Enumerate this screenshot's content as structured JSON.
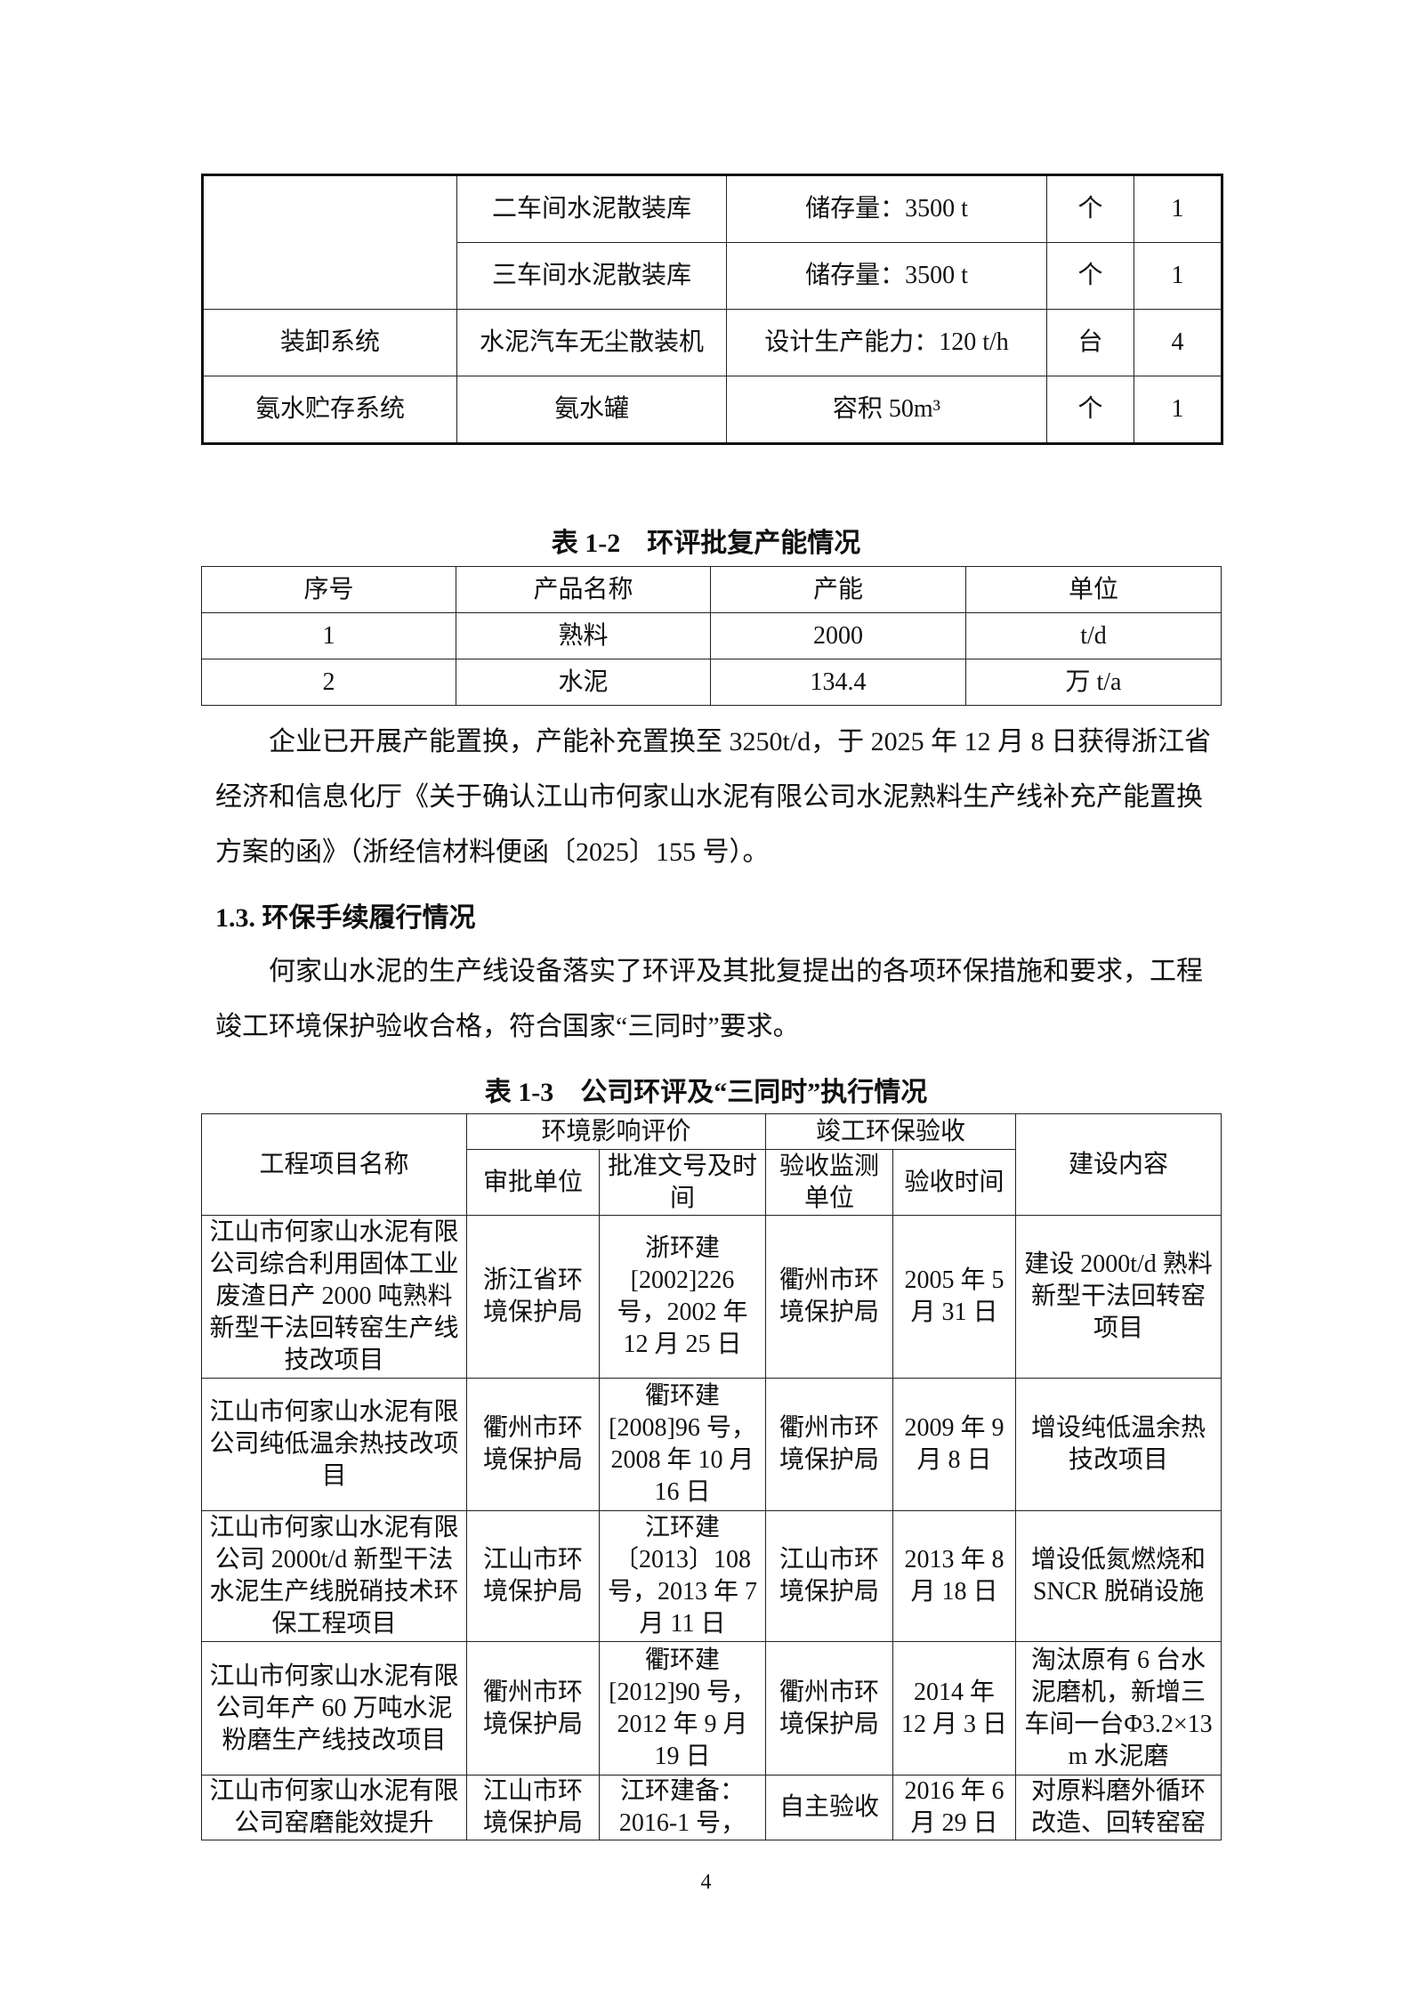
{
  "table_top": {
    "rows": [
      {
        "group": "",
        "name": "二车间水泥散装库",
        "spec": "储存量：3500 t",
        "unit": "个",
        "qty": "1"
      },
      {
        "name": "三车间水泥散装库",
        "spec": "储存量：3500 t",
        "unit": "个",
        "qty": "1"
      },
      {
        "group": "装卸系统",
        "name": "水泥汽车无尘散装机",
        "spec": "设计生产能力：120 t/h",
        "unit": "台",
        "qty": "4"
      },
      {
        "group": "氨水贮存系统",
        "name": "氨水罐",
        "spec": "容积 50m³",
        "unit": "个",
        "qty": "1"
      }
    ]
  },
  "table_1_2": {
    "caption": "表 1-2　环评批复产能情况",
    "headers": [
      "序号",
      "产品名称",
      "产能",
      "单位"
    ],
    "rows": [
      [
        "1",
        "熟料",
        "2000",
        "t/d"
      ],
      [
        "2",
        "水泥",
        "134.4",
        "万 t/a"
      ]
    ]
  },
  "paragraph1": "企业已开展产能置换，产能补充置换至 3250t/d，于 2025 年 12 月 8 日获得浙江省经济和信息化厅《关于确认江山市何家山水泥有限公司水泥熟料生产线补充产能置换方案的函》（浙经信材料便函〔2025〕155 号）。",
  "section_heading": "1.3. 环保手续履行情况",
  "paragraph2": "何家山水泥的生产线设备落实了环评及其批复提出的各项环保措施和要求，工程竣工环境保护验收合格，符合国家“三同时”要求。",
  "table_1_3": {
    "caption": "表 1-3　公司环评及“三同时”执行情况",
    "headers": {
      "project": "工程项目名称",
      "eia": "环境影响评价",
      "acceptance": "竣工环保验收",
      "content": "建设内容",
      "approver": "审批单位",
      "doc": "批准文号及时间",
      "monitor": "验收监测单位",
      "time": "验收时间"
    },
    "rows": [
      [
        "江山市何家山水泥有限公司综合利用固体工业废渣日产 2000 吨熟料新型干法回转窑生产线技改项目",
        "浙江省环境保护局",
        "浙环建[2002]226 号，2002 年 12 月 25 日",
        "衢州市环境保护局",
        "2005 年 5 月 31 日",
        "建设 2000t/d 熟料新型干法回转窑项目"
      ],
      [
        "江山市何家山水泥有限公司纯低温余热技改项目",
        "衢州市环境保护局",
        "衢环建[2008]96 号，2008 年 10 月 16 日",
        "衢州市环境保护局",
        "2009 年 9 月 8 日",
        "增设纯低温余热技改项目"
      ],
      [
        "江山市何家山水泥有限公司 2000t/d 新型干法水泥生产线脱硝技术环保工程项目",
        "江山市环境保护局",
        "江环建〔2013〕108 号，2013 年 7 月 11 日",
        "江山市环境保护局",
        "2013 年 8 月 18 日",
        "增设低氮燃烧和 SNCR 脱硝设施"
      ],
      [
        "江山市何家山水泥有限公司年产 60 万吨水泥粉磨生产线技改项目",
        "衢州市环境保护局",
        "衢环建[2012]90 号，2012 年 9 月 19 日",
        "衢州市环境保护局",
        "2014 年 12 月 3 日",
        "淘汰原有 6 台水泥磨机，新增三车间一台Φ3.2×13 m 水泥磨"
      ],
      [
        "江山市何家山水泥有限公司窑磨能效提升",
        "江山市环境保护局",
        "江环建备：2016-1 号，",
        "自主验收",
        "2016 年 6 月 29 日",
        "对原料磨外循环改造、回转窑窑"
      ]
    ]
  },
  "page_number": "4"
}
